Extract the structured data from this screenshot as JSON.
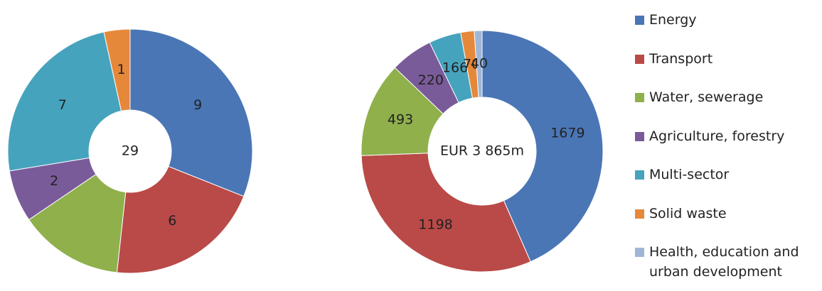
{
  "chart_data": [
    {
      "type": "donut",
      "categories": [
        "Energy",
        "Transport",
        "Water, sewerage",
        "Agriculture, forestry",
        "Multi-sector",
        "Solid waste",
        "Health, education and urban development"
      ],
      "values": [
        9,
        6,
        4,
        2,
        7,
        1,
        0
      ],
      "value_labels": [
        "9",
        "6",
        null,
        "2",
        "7",
        "1",
        null
      ],
      "colors": [
        "#4a76b5",
        "#b94a48",
        "#8fb04b",
        "#7a5b9a",
        "#46a3bd",
        "#e6883a",
        "#9fb6d9"
      ],
      "center_label": "29"
    },
    {
      "type": "donut",
      "categories": [
        "Energy",
        "Transport",
        "Water, sewerage",
        "Agriculture, forestry",
        "Multi-sector",
        "Solid waste",
        "Health, education and urban development"
      ],
      "values": [
        1679,
        1198,
        493,
        220,
        166,
        70,
        40
      ],
      "colors": [
        "#4a76b5",
        "#b94a48",
        "#8fb04b",
        "#7a5b9a",
        "#46a3bd",
        "#e6883a",
        "#9fb6d9"
      ],
      "center_label": "EUR 3 865m"
    }
  ]
}
